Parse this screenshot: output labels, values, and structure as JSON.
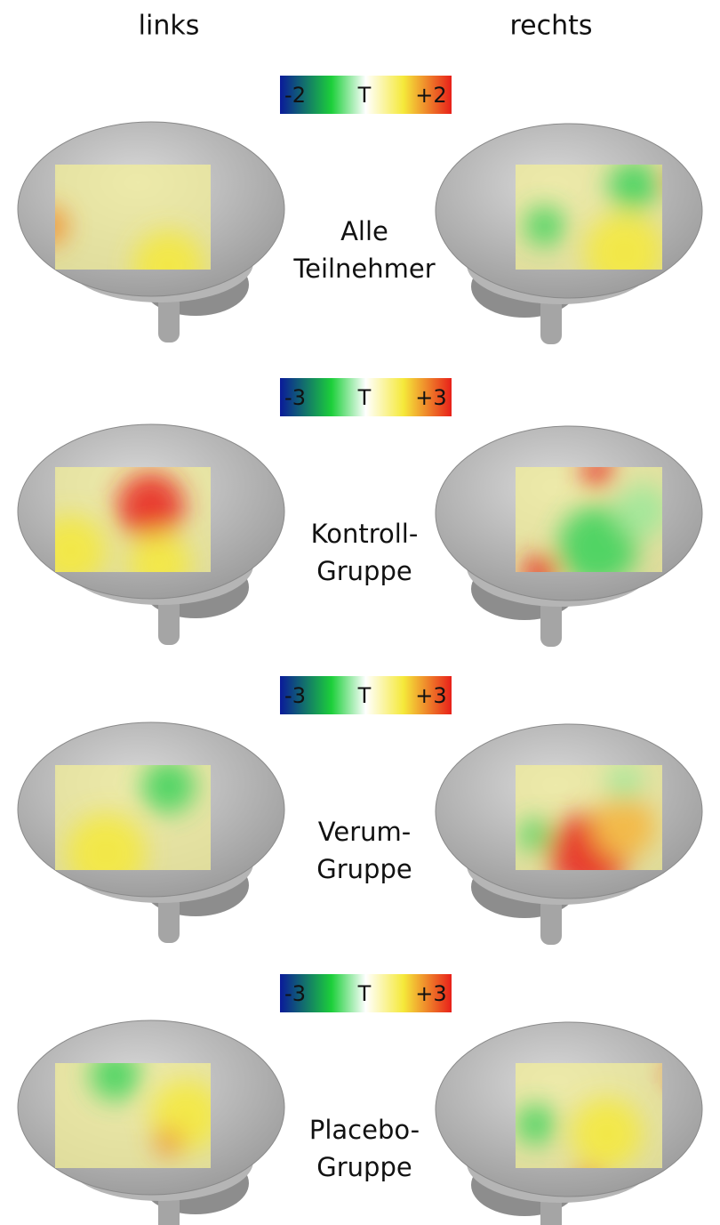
{
  "header": {
    "left": "links",
    "right": "rechts"
  },
  "panels": [
    {
      "scale": {
        "min": "-2",
        "symbol": "T",
        "max": "+2"
      },
      "label": [
        "Alle",
        "Teilnehmer"
      ]
    },
    {
      "scale": {
        "min": "-3",
        "symbol": "T",
        "max": "+3"
      },
      "label": [
        "Kontroll-",
        "Gruppe"
      ]
    },
    {
      "scale": {
        "min": "-3",
        "symbol": "T",
        "max": "+3"
      },
      "label": [
        "Verum-",
        "Gruppe"
      ]
    },
    {
      "scale": {
        "min": "-3",
        "symbol": "T",
        "max": "+3"
      },
      "label": [
        "Placebo-",
        "Gruppe"
      ]
    }
  ]
}
